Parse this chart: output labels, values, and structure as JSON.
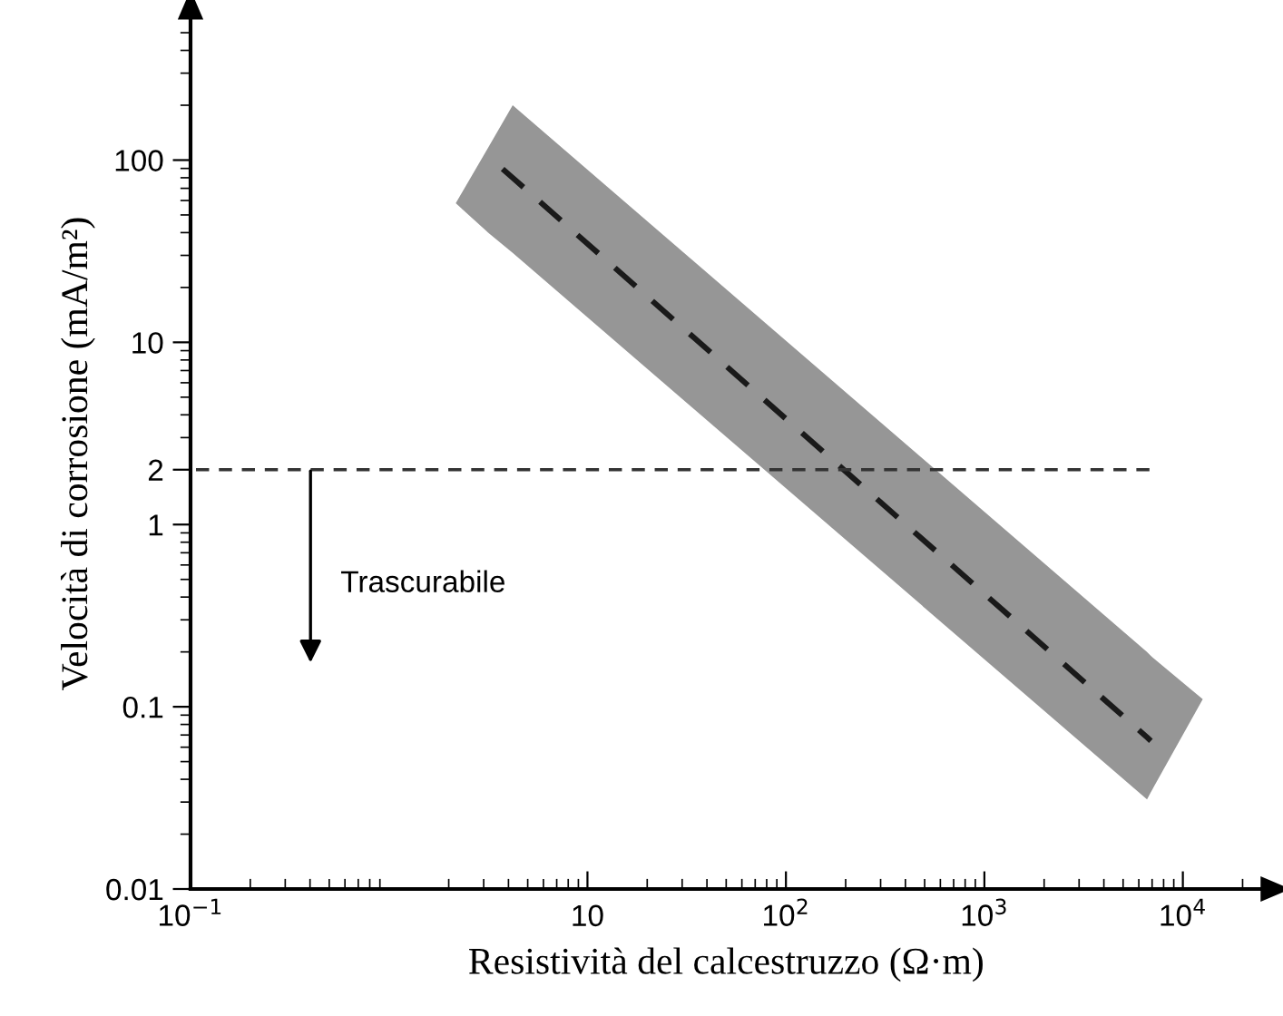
{
  "chart_data": {
    "type": "line",
    "xlabel": "Resistività del calcestruzzo (Ω·m)",
    "ylabel": "Velocità di corrosione (mA/m²)",
    "log": "xy",
    "xlim": [
      0.1,
      25000
    ],
    "ylim": [
      0.01,
      600
    ],
    "xticks": [
      {
        "value": 0.1,
        "label": "10$^{−1}$"
      },
      10,
      {
        "value": 100,
        "label": "10$^{2}$"
      },
      {
        "value": 1000,
        "label": "10$^{3}$"
      },
      {
        "value": 10000,
        "label": "10$^{4}$"
      }
    ],
    "yticks": [
      0.01,
      0.1,
      1,
      2,
      10,
      100
    ],
    "grid": false,
    "series": [
      {
        "color": "#1a1a1a",
        "line_style": "dashed",
        "x": [
          2.17,
          3.16,
          4.2,
          6600,
          6900,
          12600
        ],
        "values": [
          null,
          105,
          80,
          0.068,
          0.065,
          null
        ],
        "lower": [
          58,
          40,
          31,
          0.031,
          0.034,
          0.11
        ],
        "upper": [
          58,
          117,
          200,
          0.2,
          0.19,
          0.11
        ]
      },
      {
        "color": "#333333",
        "line_style": "dashed",
        "x": [
          0.1,
          6900
        ],
        "values": [
          2,
          2
        ]
      }
    ],
    "annotations": [
      "Trascurabile"
    ]
  }
}
